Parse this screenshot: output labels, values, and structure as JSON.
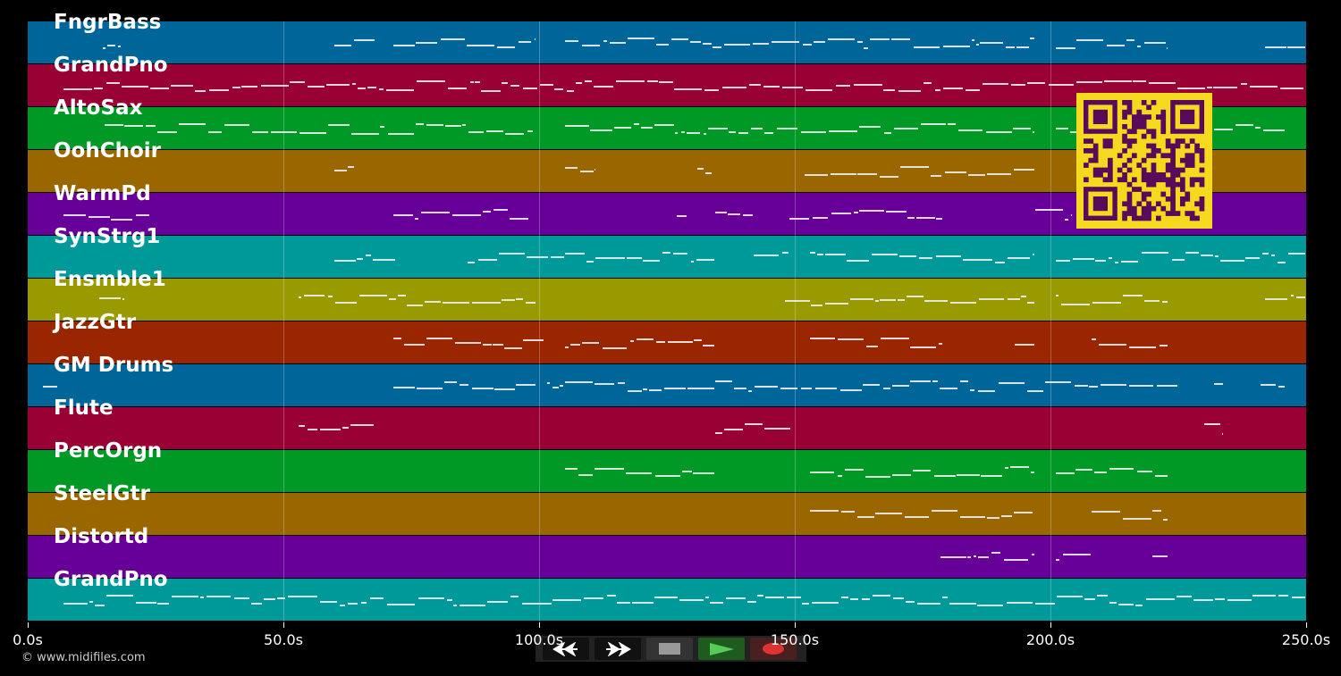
{
  "tracks": [
    {
      "name": "FngrBass",
      "color": "#006699",
      "notes": [
        [
          14.7,
          18.4
        ],
        [
          60,
          68
        ],
        [
          71.5,
          99.5
        ],
        [
          105,
          134
        ],
        [
          134,
          197
        ],
        [
          201,
          223
        ],
        [
          242,
          250
        ]
      ]
    },
    {
      "name": "GrandPno",
      "color": "#990033",
      "notes": [
        [
          7,
          250
        ]
      ]
    },
    {
      "name": "AltoSax",
      "color": "#009926",
      "notes": [
        [
          15,
          99
        ],
        [
          105,
          197
        ],
        [
          201,
          211
        ],
        [
          232,
          246
        ]
      ]
    },
    {
      "name": "OohChoir",
      "color": "#996600",
      "notes": [
        [
          60,
          64
        ],
        [
          105,
          111
        ],
        [
          131,
          134
        ],
        [
          152,
          197
        ]
      ]
    },
    {
      "name": "WarmPd",
      "color": "#660099",
      "notes": [
        [
          7,
          24
        ],
        [
          71.5,
          98
        ],
        [
          127,
          129
        ],
        [
          134.5,
          142
        ],
        [
          149,
          179
        ],
        [
          197,
          204
        ]
      ]
    },
    {
      "name": "SynStrg1",
      "color": "#009999",
      "notes": [
        [
          60,
          72
        ],
        [
          86,
          105
        ],
        [
          105,
          134.5
        ],
        [
          142,
          149
        ],
        [
          153,
          197
        ],
        [
          201,
          250
        ]
      ]
    },
    {
      "name": "Ensmble1",
      "color": "#999900",
      "notes": [
        [
          14,
          19
        ],
        [
          53,
          99.5
        ],
        [
          148,
          197
        ],
        [
          201,
          223
        ],
        [
          242,
          250
        ]
      ]
    },
    {
      "name": "JazzGtr",
      "color": "#992600",
      "notes": [
        [
          71.5,
          101
        ],
        [
          105,
          134.5
        ],
        [
          153,
          179
        ],
        [
          193,
          197
        ],
        [
          208,
          223
        ]
      ]
    },
    {
      "name": "GM Drums",
      "color": "#006699",
      "notes": [
        [
          3,
          6
        ],
        [
          71.5,
          99.5
        ],
        [
          101.5,
          104
        ],
        [
          104,
          225
        ],
        [
          232,
          234
        ],
        [
          241,
          246
        ]
      ]
    },
    {
      "name": "Flute",
      "color": "#990033",
      "notes": [
        [
          53,
          68
        ],
        [
          134.5,
          149.3
        ],
        [
          230,
          234
        ]
      ]
    },
    {
      "name": "PercOrgn",
      "color": "#009926",
      "notes": [
        [
          105,
          134.5
        ],
        [
          153,
          197
        ],
        [
          201,
          223
        ]
      ]
    },
    {
      "name": "SteelGtr",
      "color": "#996600",
      "notes": [
        [
          153,
          197
        ],
        [
          208,
          223
        ]
      ]
    },
    {
      "name": "Distortd",
      "color": "#660099",
      "notes": [
        [
          178.5,
          197
        ],
        [
          201,
          208
        ],
        [
          220,
          223
        ]
      ]
    },
    {
      "name": "GrandPno",
      "color": "#009999",
      "notes": [
        [
          7,
          250
        ]
      ]
    }
  ],
  "axis": {
    "max_seconds": 250,
    "ticks": [
      "0.0s",
      "50.0s",
      "100.0s",
      "150.0s",
      "200.0s",
      "250.0s"
    ],
    "tick_values": [
      0,
      50,
      100,
      150,
      200,
      250
    ]
  },
  "copyright": "© www.midifiles.com",
  "controls": {
    "rewind": "rewind-icon",
    "fast_forward": "fast-forward-icon",
    "stop": "stop-icon",
    "play": "play-icon",
    "record": "record-icon"
  }
}
